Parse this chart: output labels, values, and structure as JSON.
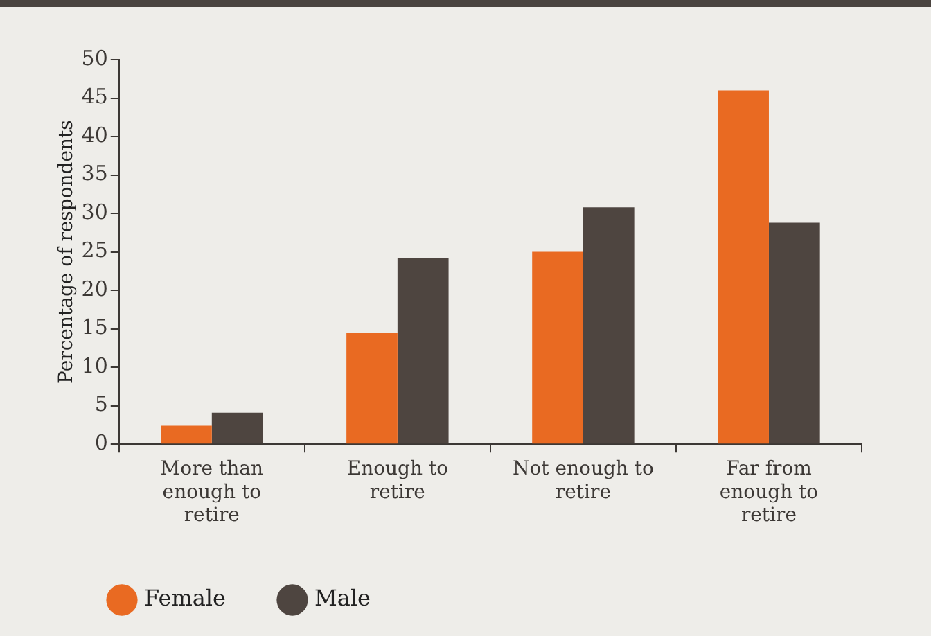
{
  "chart_data": {
    "type": "bar",
    "ylabel": "Percentage of respondents",
    "categories": [
      "More than enough to retire",
      "Enough to retire",
      "Not enough to retire",
      "Far from enough to retire"
    ],
    "series": [
      {
        "name": "Female",
        "color": "#e96a22",
        "values": [
          2.4,
          14.5,
          25,
          46
        ]
      },
      {
        "name": "Male",
        "color": "#4e4540",
        "values": [
          4.1,
          24.2,
          30.8,
          28.8
        ]
      }
    ],
    "ylim": [
      0,
      50
    ],
    "yticks": [
      0,
      5,
      10,
      15,
      20,
      25,
      30,
      35,
      40,
      45,
      50
    ],
    "grid": false,
    "legend": "bottom left"
  }
}
